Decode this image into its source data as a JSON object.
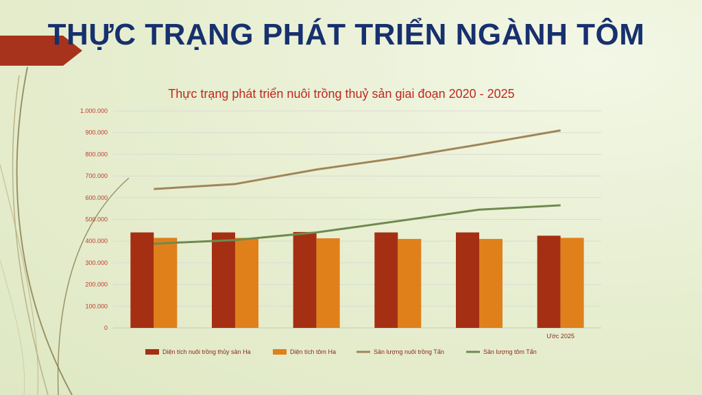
{
  "slide": {
    "title": "THỰC TRẠNG PHÁT TRIỂN NGÀNH TÔM",
    "accent_color": "#a8331c",
    "title_color": "#17306e"
  },
  "chart_data": {
    "type": "bar",
    "title": "Thực trạng phát triển nuôi trồng thuỷ sản giai đoạn 2020 - 2025",
    "categories": [
      "",
      "",
      "",
      "",
      "",
      "Ước 2025"
    ],
    "ylim": [
      0,
      1000000
    ],
    "yticks": [
      {
        "value": 0,
        "label": "0"
      },
      {
        "value": 100000,
        "label": "100.000"
      },
      {
        "value": 200000,
        "label": "200.000"
      },
      {
        "value": 300000,
        "label": "300.000"
      },
      {
        "value": 400000,
        "label": "400.000"
      },
      {
        "value": 500000,
        "label": "500.000"
      },
      {
        "value": 600000,
        "label": "600.000"
      },
      {
        "value": 700000,
        "label": "700.000"
      },
      {
        "value": 800000,
        "label": "800.000"
      },
      {
        "value": 900000,
        "label": "900.000"
      },
      {
        "value": 1000000,
        "label": "1.000.000"
      }
    ],
    "grid": true,
    "legend_position": "bottom",
    "series": [
      {
        "name": "Diện tích nuôi trồng thủy sản Ha",
        "kind": "bar",
        "color": "#a52f12",
        "values": [
          440000,
          440000,
          442000,
          440000,
          440000,
          425000
        ]
      },
      {
        "name": "Diện tích tôm Ha",
        "kind": "bar",
        "color": "#e0801b",
        "values": [
          415000,
          415000,
          413000,
          410000,
          410000,
          415000
        ]
      },
      {
        "name": "Sản lượng nuôi trồng Tấn",
        "kind": "line",
        "color": "#a08558",
        "values": [
          640000,
          663000,
          730000,
          783000,
          845000,
          910000
        ]
      },
      {
        "name": "Sản lượng tôm Tấn",
        "kind": "line",
        "color": "#6e8a4e",
        "values": [
          388000,
          405000,
          440000,
          492000,
          545000,
          565000
        ]
      }
    ]
  }
}
